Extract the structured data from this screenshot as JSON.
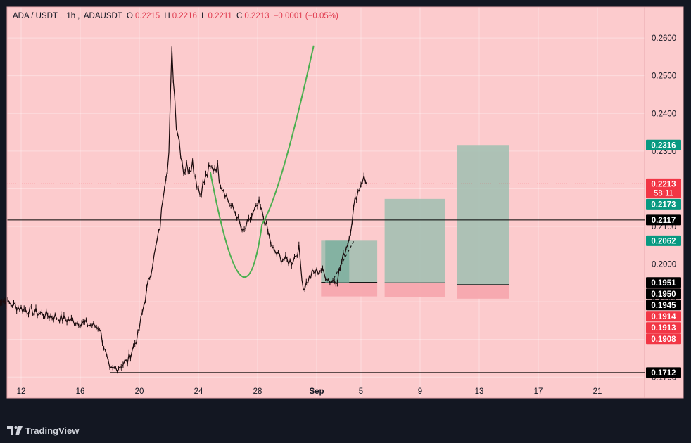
{
  "header": {
    "symbol": "ADA / USDT",
    "interval": "1h",
    "exchange": "ADAUSDT",
    "o_label": "O",
    "o_val": "0.2215",
    "h_label": "H",
    "h_val": "0.2216",
    "l_label": "L",
    "l_val": "0.2211",
    "c_label": "C",
    "c_val": "0.2213",
    "change": "−0.0001 (−0.05%)"
  },
  "branding": {
    "name": "TradingView",
    "icon": "tradingview-logo-icon"
  },
  "colors": {
    "background": "#fccbcd",
    "candle": "#1a0a0c",
    "curve": "#4caf50",
    "target_box": "#9fbfb0",
    "stop_box": "#f7a6ae",
    "green_tag": "#089981",
    "red_tag": "#f23645",
    "black_tag": "#000000"
  },
  "chart_data": {
    "type": "candlestick",
    "symbol": "ADA / USDT",
    "ylim": [
      0.1665,
      0.2645
    ],
    "y_ticks": [
      "0.2600",
      "0.2500",
      "0.2400",
      "0.2300",
      "0.2200",
      "0.2100",
      "0.2000",
      "0.1900",
      "0.1800",
      "0.1700"
    ],
    "x_ticks": [
      "12",
      "16",
      "20",
      "24",
      "28",
      "Sep",
      "5",
      "9",
      "13",
      "17",
      "21"
    ],
    "price_path": [
      [
        10.4,
        0.191
      ],
      [
        12.0,
        0.1882
      ],
      [
        14.0,
        0.1862
      ],
      [
        16.0,
        0.1845
      ],
      [
        17.3,
        0.1832
      ],
      [
        18.0,
        0.1715
      ],
      [
        18.6,
        0.1728
      ],
      [
        19.2,
        0.1742
      ],
      [
        19.9,
        0.181
      ],
      [
        20.6,
        0.195
      ],
      [
        21.0,
        0.202
      ],
      [
        21.4,
        0.21
      ],
      [
        21.7,
        0.222
      ],
      [
        22.0,
        0.2295
      ],
      [
        22.2,
        0.256
      ],
      [
        22.5,
        0.238
      ],
      [
        23.0,
        0.225
      ],
      [
        23.6,
        0.227
      ],
      [
        24.1,
        0.2185
      ],
      [
        24.6,
        0.224
      ],
      [
        25.2,
        0.2265
      ],
      [
        25.6,
        0.221
      ],
      [
        26.1,
        0.216
      ],
      [
        26.6,
        0.213
      ],
      [
        27.0,
        0.208
      ],
      [
        27.5,
        0.212
      ],
      [
        28.1,
        0.216
      ],
      [
        28.6,
        0.21
      ],
      [
        29.0,
        0.204
      ],
      [
        29.6,
        0.2015
      ],
      [
        30.3,
        0.2005
      ],
      [
        30.8,
        0.204
      ],
      [
        31.1,
        0.1935
      ],
      [
        31.7,
        0.1975
      ],
      [
        32.3,
        0.1985
      ],
      [
        32.9,
        0.1955
      ],
      [
        33.4,
        0.196
      ],
      [
        33.8,
        0.202
      ],
      [
        34.2,
        0.207
      ],
      [
        34.6,
        0.217
      ],
      [
        35.1,
        0.223
      ],
      [
        35.4,
        0.2213
      ]
    ],
    "current_price": 0.2213,
    "countdown": "58:11",
    "horizontal_lines": [
      0.2117,
      0.1712
    ],
    "annotations": {
      "curve": "rounded bottom pattern",
      "boxes": [
        {
          "x_start": 32.3,
          "x_end": 36.1,
          "target": 0.2062,
          "entry": 0.1951,
          "stop": 0.1914
        },
        {
          "x_start": 36.6,
          "x_end": 40.7,
          "target": 0.2173,
          "entry": 0.195,
          "stop": 0.1913
        },
        {
          "x_start": 41.5,
          "x_end": 45.0,
          "target": 0.2316,
          "entry": 0.1945,
          "stop": 0.1908
        }
      ]
    },
    "price_tags": [
      {
        "text": "0.2316",
        "value": 0.2316,
        "color": "#089981"
      },
      {
        "text": "0.2213",
        "value": 0.2213,
        "color": "#f23645",
        "sub": "58:11"
      },
      {
        "text": "0.2173",
        "value": 0.2173,
        "color": "#089981"
      },
      {
        "text": "0.2117",
        "value": 0.2117,
        "color": "#000000"
      },
      {
        "text": "0.2062",
        "value": 0.2062,
        "color": "#089981"
      },
      {
        "text": "0.1951",
        "value": 0.1951,
        "color": "#000000"
      },
      {
        "text": "0.1950",
        "value": 0.195,
        "color": "#000000"
      },
      {
        "text": "0.1945",
        "value": 0.1945,
        "color": "#000000"
      },
      {
        "text": "0.1914",
        "value": 0.1914,
        "color": "#f23645"
      },
      {
        "text": "0.1913",
        "value": 0.1913,
        "color": "#f23645"
      },
      {
        "text": "0.1908",
        "value": 0.1908,
        "color": "#f23645"
      },
      {
        "text": "0.1712",
        "value": 0.1712,
        "color": "#000000"
      }
    ]
  }
}
